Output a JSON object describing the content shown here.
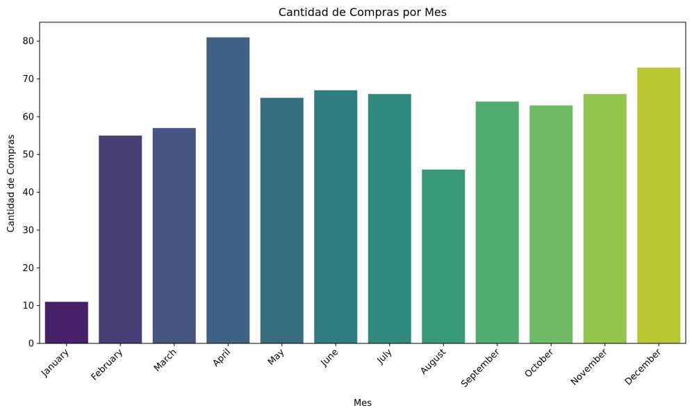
{
  "chart_data": {
    "type": "bar",
    "title": "Cantidad de Compras por Mes",
    "xlabel": "Mes",
    "ylabel": "Cantidad de Compras",
    "categories": [
      "January",
      "February",
      "March",
      "April",
      "May",
      "June",
      "July",
      "August",
      "September",
      "October",
      "November",
      "December"
    ],
    "values": [
      11,
      55,
      57,
      81,
      65,
      67,
      66,
      46,
      64,
      63,
      66,
      73
    ],
    "colors": [
      "#48206a",
      "#483d77",
      "#465481",
      "#3e6285",
      "#376e7f",
      "#2e7c82",
      "#2f8b7f",
      "#379b7a",
      "#4ead6f",
      "#70bc66",
      "#91c54c",
      "#bac630"
    ],
    "yticks": [
      0,
      10,
      20,
      30,
      40,
      50,
      60,
      70,
      80
    ],
    "ylim": [
      0,
      85
    ],
    "grid": false,
    "x_tick_rotation": -45
  }
}
